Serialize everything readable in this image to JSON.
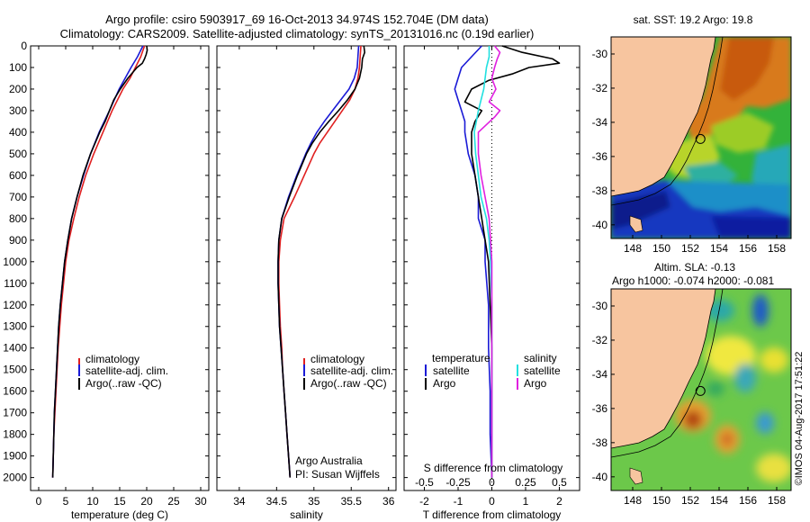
{
  "header": {
    "title_line1": "Argo profile: csiro 5903917_69 16-Oct-2013 34.974S 152.704E (DM data)",
    "title_line2": "Climatology: CARS2009. Satellite-adjusted climatology: synTS_20131016.nc (0.19d earlier)"
  },
  "colors": {
    "climatology": "#e02020",
    "satellite": "#1a1ad6",
    "argo": "#000000",
    "sal_satellite": "#22e0e0",
    "sal_argo": "#e020e0"
  },
  "depth_ticks": [
    "0",
    "100",
    "200",
    "300",
    "400",
    "500",
    "600",
    "700",
    "800",
    "900",
    "1000",
    "1100",
    "1200",
    "1300",
    "1400",
    "1500",
    "1600",
    "1700",
    "1800",
    "1900",
    "2000"
  ],
  "depth_range": [
    0,
    2060
  ],
  "chart_data": [
    {
      "type": "line",
      "title": "",
      "xlabel": "temperature (deg C)",
      "ylabel": "",
      "xlim": [
        -1.5,
        31.5
      ],
      "x_ticks": [
        "0",
        "5",
        "10",
        "15",
        "20",
        "25",
        "30"
      ],
      "x_tick_values": [
        0,
        5,
        10,
        15,
        20,
        25,
        30
      ],
      "legend": [
        "climatology",
        "satellite-adj. clim.",
        "Argo(..raw -QC)"
      ],
      "series": [
        {
          "name": "climatology",
          "color_key": "climatology",
          "depth": [
            0,
            50,
            100,
            150,
            200,
            300,
            400,
            500,
            600,
            700,
            800,
            900,
            1000,
            1100,
            1200,
            1300,
            1400,
            1500,
            1600,
            1700,
            1800,
            1900,
            2000
          ],
          "values": [
            19.6,
            18.9,
            17.9,
            16.9,
            15.6,
            13.6,
            11.9,
            10.2,
            8.7,
            7.5,
            6.5,
            5.6,
            5.0,
            4.6,
            4.2,
            3.9,
            3.6,
            3.4,
            3.2,
            3.0,
            2.8,
            2.7,
            2.6
          ]
        },
        {
          "name": "satellite-adj. clim.",
          "color_key": "satellite",
          "depth": [
            0,
            50,
            100,
            150,
            200,
            300,
            400,
            500,
            600,
            700,
            800,
            900,
            1000,
            1100,
            1200,
            1300,
            1400,
            1500,
            1600,
            1700,
            1800,
            1900,
            2000
          ],
          "values": [
            19.3,
            18.3,
            17.1,
            16.0,
            14.9,
            13.1,
            11.2,
            9.6,
            8.3,
            7.1,
            6.1,
            5.4,
            4.8,
            4.4,
            4.0,
            3.7,
            3.5,
            3.3,
            3.1,
            2.9,
            2.8,
            2.7,
            2.6
          ]
        },
        {
          "name": "Argo(..raw -QC)",
          "color_key": "argo",
          "depth": [
            0,
            20,
            40,
            60,
            80,
            100,
            150,
            200,
            250,
            300,
            350,
            400,
            500,
            600,
            700,
            800,
            900,
            1000,
            1100,
            1200,
            1300,
            1400,
            1500,
            1600,
            1700,
            1800,
            1900,
            2000
          ],
          "values": [
            20.0,
            20.1,
            19.9,
            19.6,
            19.2,
            18.2,
            16.5,
            15.1,
            13.9,
            13.1,
            12.3,
            11.3,
            9.6,
            8.2,
            7.1,
            6.1,
            5.4,
            4.8,
            4.4,
            4.0,
            3.7,
            3.5,
            3.3,
            3.1,
            2.9,
            2.8,
            2.7,
            2.6
          ]
        }
      ]
    },
    {
      "type": "line",
      "title": "",
      "xlabel": "salinity",
      "ylabel": "",
      "xlim": [
        33.7,
        36.1
      ],
      "x_ticks": [
        "34",
        "34.5",
        "35",
        "35.5",
        "36"
      ],
      "x_tick_values": [
        34,
        34.5,
        35,
        35.5,
        36
      ],
      "legend": [
        "climatology",
        "satellite-adj. clim.",
        "Argo(..raw -QC)"
      ],
      "annotation_line1": "Argo Australia",
      "annotation_line2": "PI: Susan Wijffels",
      "series": [
        {
          "name": "climatology",
          "color_key": "climatology",
          "depth": [
            0,
            50,
            100,
            150,
            200,
            250,
            300,
            350,
            400,
            450,
            500,
            600,
            700,
            800,
            900,
            1000,
            1100,
            1200,
            1300,
            1400,
            1500,
            1600,
            1700,
            1800,
            1900,
            2000
          ],
          "values": [
            35.63,
            35.62,
            35.61,
            35.59,
            35.55,
            35.48,
            35.38,
            35.28,
            35.18,
            35.08,
            35.0,
            34.87,
            34.74,
            34.6,
            34.55,
            34.53,
            34.53,
            34.54,
            34.55,
            34.57,
            34.58,
            34.6,
            34.62,
            34.64,
            34.66,
            34.68
          ]
        },
        {
          "name": "satellite-adj. clim.",
          "color_key": "satellite",
          "depth": [
            0,
            50,
            100,
            150,
            200,
            250,
            300,
            350,
            400,
            450,
            500,
            600,
            700,
            800,
            900,
            1000,
            1100,
            1200,
            1300,
            1400,
            1500,
            1600,
            1700,
            1800,
            1900,
            2000
          ],
          "values": [
            35.6,
            35.59,
            35.58,
            35.54,
            35.47,
            35.36,
            35.25,
            35.14,
            35.04,
            34.96,
            34.89,
            34.77,
            34.66,
            34.57,
            34.53,
            34.52,
            34.52,
            34.53,
            34.54,
            34.56,
            34.58,
            34.6,
            34.62,
            34.64,
            34.66,
            34.68
          ]
        },
        {
          "name": "Argo(..raw -QC)",
          "color_key": "argo",
          "depth": [
            0,
            30,
            60,
            100,
            150,
            200,
            250,
            300,
            350,
            400,
            450,
            500,
            600,
            700,
            800,
            900,
            1000,
            1100,
            1200,
            1300,
            1400,
            1500,
            1600,
            1700,
            1800,
            1900,
            2000
          ],
          "values": [
            35.67,
            35.68,
            35.65,
            35.64,
            35.61,
            35.55,
            35.45,
            35.33,
            35.2,
            35.08,
            34.98,
            34.9,
            34.78,
            34.67,
            34.57,
            34.53,
            34.52,
            34.52,
            34.53,
            34.54,
            34.56,
            34.58,
            34.6,
            34.62,
            34.64,
            34.66,
            34.68
          ]
        }
      ]
    },
    {
      "type": "line",
      "title": "",
      "xlabel": "T difference from climatology",
      "xlabel_top": "S difference from climatology",
      "xlim": [
        -2.6,
        2.6
      ],
      "x_ticks": [
        "-2",
        "-1",
        "0",
        "1",
        "2"
      ],
      "x_tick_values": [
        -2,
        -1,
        0,
        1,
        2
      ],
      "s_ticks": [
        "-0.5",
        "-0.25",
        "0",
        "0.25",
        "0.5"
      ],
      "s_tick_values": [
        -0.5,
        -0.25,
        0,
        0.25,
        0.5
      ],
      "s_scale": 4,
      "legend_temperature_title": "temperature",
      "legend_salinity_title": "salinity",
      "legend_temperature": [
        "satellite",
        "Argo"
      ],
      "legend_salinity": [
        "satellite",
        "Argo"
      ],
      "series": [
        {
          "name": "T satellite",
          "color_key": "satellite",
          "depth": [
            0,
            50,
            100,
            150,
            200,
            250,
            300,
            350,
            400,
            500,
            600,
            700,
            800,
            900,
            1000,
            1200,
            1400,
            1600,
            1800,
            2000
          ],
          "values": [
            -0.3,
            -0.6,
            -0.9,
            -1.0,
            -1.1,
            -1.0,
            -0.9,
            -0.8,
            -0.8,
            -0.7,
            -0.5,
            -0.4,
            -0.4,
            -0.2,
            -0.2,
            -0.1,
            -0.1,
            -0.05,
            -0.05,
            0
          ]
        },
        {
          "name": "T Argo",
          "color_key": "argo",
          "depth": [
            0,
            30,
            60,
            80,
            100,
            130,
            160,
            200,
            260,
            300,
            350,
            400,
            500,
            600,
            700,
            800,
            900,
            1000,
            1200,
            1400,
            1600,
            1800,
            2000
          ],
          "values": [
            0.3,
            0.9,
            1.8,
            2.0,
            1.1,
            0.6,
            -0.1,
            -0.6,
            -0.8,
            -0.3,
            -0.5,
            -0.6,
            -0.6,
            -0.5,
            -0.4,
            -0.3,
            -0.2,
            -0.1,
            -0.05,
            0,
            0,
            0,
            0
          ]
        },
        {
          "name": "S satellite",
          "color_key": "sal_satellite",
          "depth": [
            0,
            50,
            100,
            150,
            200,
            300,
            400,
            500,
            600,
            700,
            800,
            900,
            1000,
            1200,
            1400,
            1600,
            1800,
            2000
          ],
          "values": [
            -0.02,
            -0.02,
            -0.04,
            -0.05,
            -0.06,
            -0.1,
            -0.13,
            -0.12,
            -0.1,
            -0.08,
            -0.04,
            -0.02,
            -0.01,
            0,
            0,
            0,
            0,
            0
          ]
        },
        {
          "name": "S Argo",
          "color_key": "sal_argo",
          "depth": [
            0,
            30,
            60,
            100,
            150,
            200,
            260,
            300,
            330,
            400,
            500,
            600,
            700,
            800,
            900,
            1000,
            1200,
            1400,
            1600,
            1800,
            2000
          ],
          "values": [
            0.02,
            0.06,
            0.04,
            0.02,
            0.0,
            0.03,
            -0.02,
            0.06,
            0.02,
            -0.1,
            -0.1,
            -0.08,
            -0.05,
            -0.02,
            -0.01,
            0.0,
            0.0,
            0.0,
            0.0,
            0.0,
            0.0
          ]
        }
      ]
    },
    {
      "type": "heatmap",
      "title": "sat. SST: 19.2  Argo: 19.8",
      "lon_ticks": [
        "148",
        "150",
        "152",
        "154",
        "156",
        "158"
      ],
      "lat_ticks": [
        "-30",
        "-32",
        "-34",
        "-36",
        "-38",
        "-40"
      ],
      "lon_range": [
        146.5,
        159.0
      ],
      "lat_range": [
        -29.0,
        -40.8
      ],
      "marker": {
        "lon": 152.704,
        "lat": -34.974
      }
    },
    {
      "type": "heatmap",
      "title": "Altim. SLA: -0.13",
      "subtitle": "Argo h1000: -0.074  h2000: -0.081",
      "lon_ticks": [
        "148",
        "150",
        "152",
        "154",
        "156",
        "158"
      ],
      "lat_ticks": [
        "-30",
        "-32",
        "-34",
        "-36",
        "-38",
        "-40"
      ],
      "lon_range": [
        146.5,
        159.0
      ],
      "lat_range": [
        -29.0,
        -40.8
      ],
      "marker": {
        "lon": 152.704,
        "lat": -34.974
      }
    }
  ],
  "footer": {
    "copyright": "©IMOS 04-Aug-2017 17:51:22"
  }
}
